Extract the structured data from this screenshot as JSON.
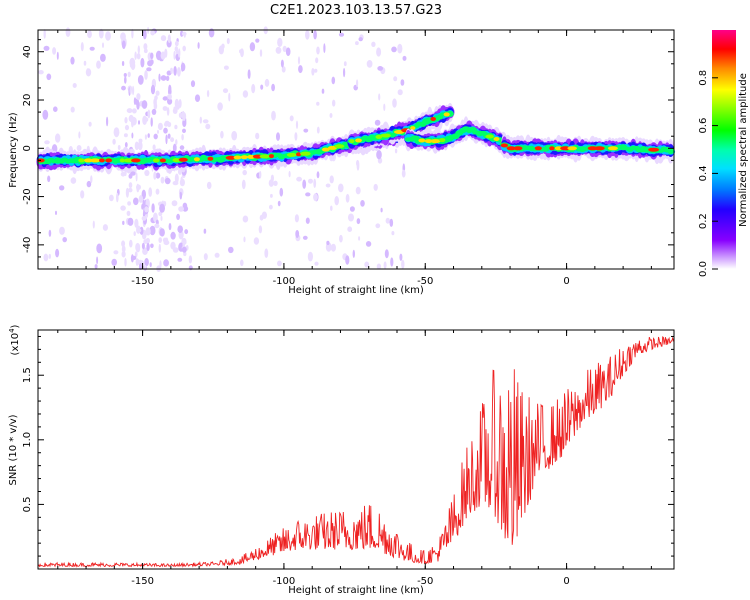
{
  "title": "C2E1.2023.103.13.57.G23",
  "chart_data": [
    {
      "type": "heatmap",
      "xlabel": "Height of straight line (km)",
      "ylabel": "Frequency (Hz)",
      "xlim": [
        -187,
        38
      ],
      "ylim": [
        -50,
        49
      ],
      "x_ticks": [
        -150,
        -100,
        -50,
        0
      ],
      "x_tick_labels": [
        "-150",
        "-100",
        "-50",
        "0"
      ],
      "y_ticks": [
        40,
        20,
        0,
        -20,
        -40
      ],
      "y_tick_labels": [
        "40",
        "20",
        "0",
        "-20",
        "-40"
      ],
      "colorbar": {
        "label": "Normalized spectral amplitude",
        "range": [
          0,
          1
        ],
        "ticks": [
          0.0,
          0.2,
          0.4,
          0.6,
          0.8
        ],
        "tick_labels": [
          "0.0",
          "0.2",
          "0.4",
          "0.6",
          "0.8"
        ]
      },
      "ridge": {
        "x": [
          -187,
          -160,
          -140,
          -120,
          -100,
          -90,
          -80,
          -70,
          -60,
          -50,
          -45,
          -40,
          -35,
          -30,
          -25,
          -20,
          -10,
          0,
          10,
          20,
          38
        ],
        "freq": [
          -5,
          -5,
          -5,
          -4,
          -3,
          -2,
          1,
          3,
          5,
          8,
          10,
          12,
          8,
          6,
          3,
          0,
          0,
          0,
          0,
          0,
          -1
        ]
      },
      "upper_branch": {
        "x": [
          -75,
          -65,
          -55,
          -50,
          -45,
          -40
        ],
        "freq": [
          3,
          5,
          8,
          11,
          13,
          15
        ]
      },
      "lower_branch": {
        "x": [
          -55,
          -50,
          -45,
          -40,
          -35,
          -30,
          -25,
          -22
        ],
        "freq": [
          4,
          3,
          3,
          5,
          8,
          6,
          4,
          2
        ]
      },
      "grid": false
    },
    {
      "type": "line",
      "xlabel": "Height of straight line (km)",
      "ylabel": "SNR (10 * v/v)",
      "yscale_label": "(x10^4)",
      "xlim": [
        -187,
        38
      ],
      "ylim": [
        0,
        18500
      ],
      "x_ticks": [
        -150,
        -100,
        -50,
        0
      ],
      "x_tick_labels": [
        "-150",
        "-100",
        "-50",
        "0"
      ],
      "y_ticks": [
        5000,
        10000,
        15000
      ],
      "y_tick_labels": [
        "0.5",
        "1.0",
        "1.5"
      ],
      "series": [
        {
          "color": "#ee2222",
          "envelope": {
            "x": [
              -187,
              -160,
              -140,
              -125,
              -115,
              -105,
              -95,
              -85,
              -75,
              -68,
              -60,
              -55,
              -50,
              -45,
              -40,
              -35,
              -30,
              -25,
              -22,
              -20,
              -18,
              -15,
              -10,
              -5,
              0,
              5,
              10,
              15,
              20,
              25,
              30,
              38
            ],
            "base": [
              200,
              200,
              200,
              250,
              400,
              1000,
              1500,
              1500,
              1500,
              1500,
              800,
              500,
              400,
              600,
              2000,
              4000,
              5000,
              4000,
              2000,
              1000,
              1500,
              4000,
              7000,
              8000,
              9000,
              11000,
              12000,
              13000,
              15000,
              16500,
              17000,
              17500
            ],
            "amplitude": [
              300,
              300,
              200,
              300,
              600,
              1500,
              2500,
              3000,
              3500,
              4000,
              2500,
              1500,
              1000,
              2000,
              4000,
              6000,
              8000,
              12000,
              14000,
              17000,
              14000,
              10000,
              6000,
              5000,
              5000,
              4000,
              4000,
              3500,
              2500,
              1500,
              1000,
              500
            ]
          }
        }
      ],
      "grid": false
    }
  ]
}
